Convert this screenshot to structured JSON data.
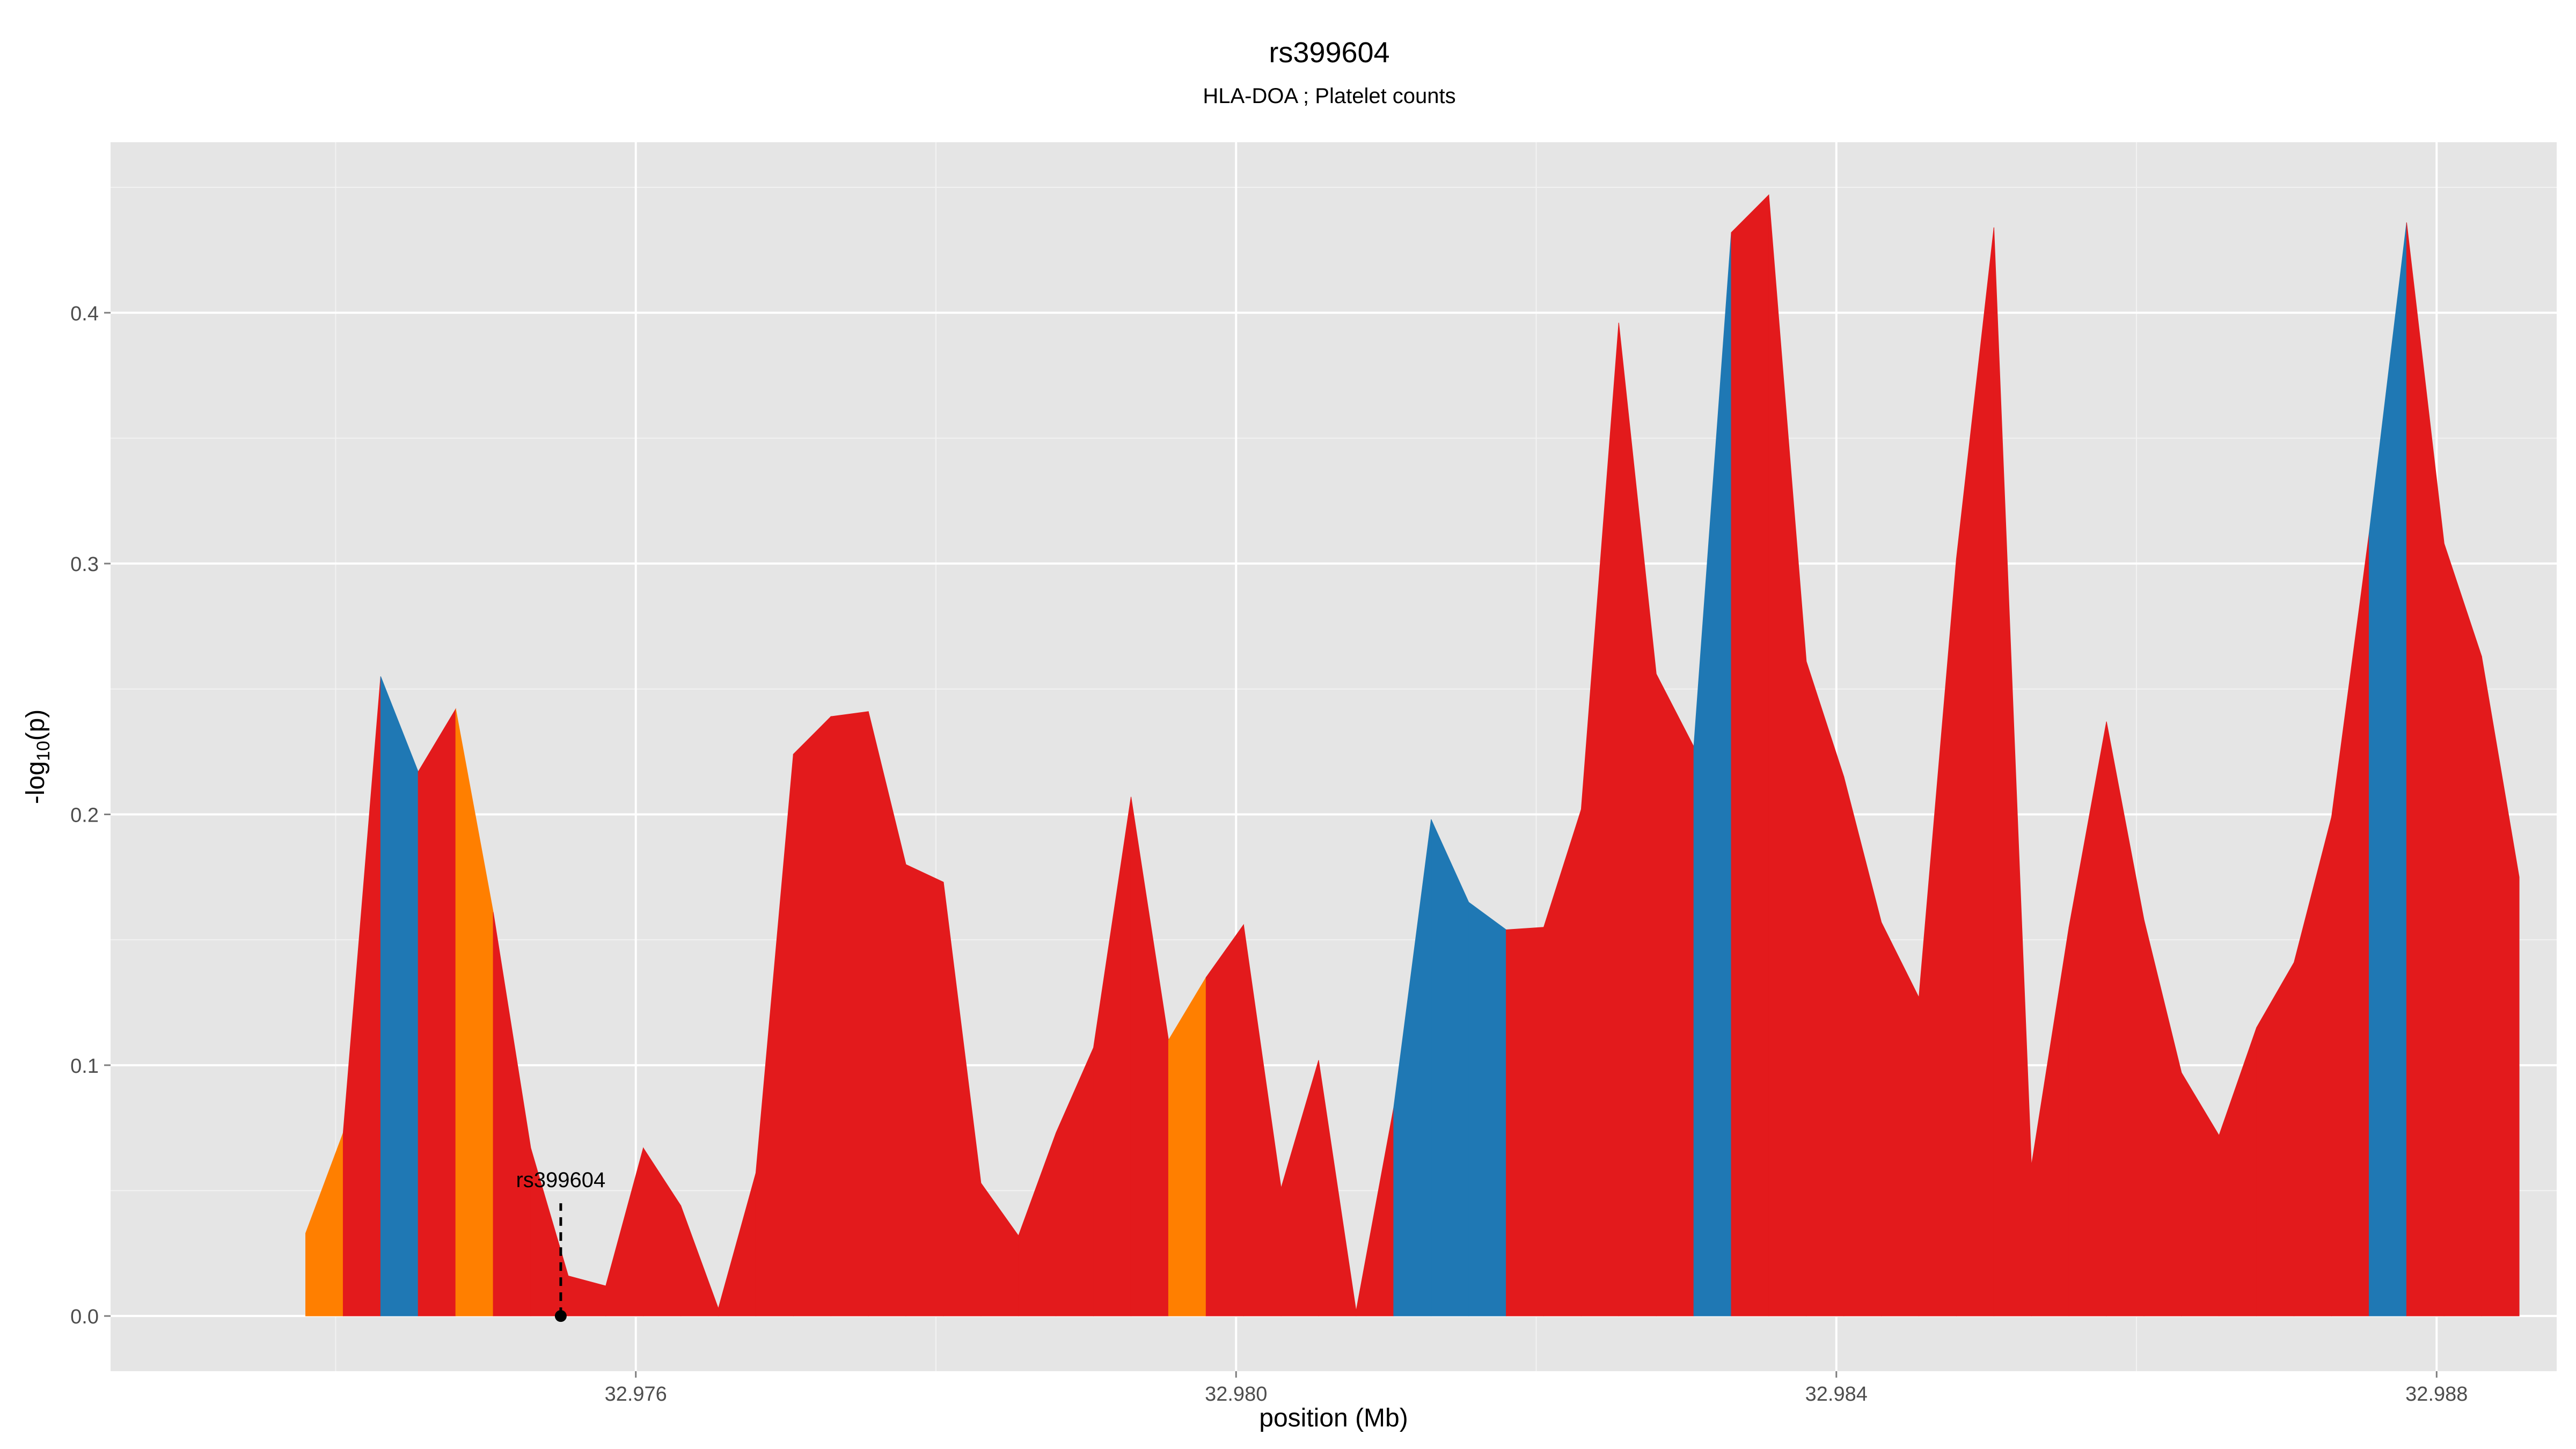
{
  "chart_data": {
    "type": "area",
    "title": "rs399604",
    "subtitle": "HLA-DOA ; Platelet counts",
    "xlabel": "position (Mb)",
    "ylabel": "-log10(p)",
    "xlim": [
      32.9725,
      32.9888
    ],
    "ylim": [
      -0.022,
      0.468
    ],
    "x_ticks": [
      {
        "value": 32.976,
        "label": "32.976"
      },
      {
        "value": 32.98,
        "label": "32.980"
      },
      {
        "value": 32.984,
        "label": "32.984"
      },
      {
        "value": 32.988,
        "label": "32.988"
      }
    ],
    "y_ticks": [
      {
        "value": 0.0,
        "label": "0.0"
      },
      {
        "value": 0.1,
        "label": "0.1"
      },
      {
        "value": 0.2,
        "label": "0.2"
      },
      {
        "value": 0.3,
        "label": "0.3"
      },
      {
        "value": 0.4,
        "label": "0.4"
      }
    ],
    "grid": true,
    "legend": "none",
    "colors": {
      "red": "#e31a1c",
      "blue": "#1f78b4",
      "orange": "#ff7f00",
      "panel": "#e5e5e5",
      "grid": "#ffffff"
    },
    "points": [
      {
        "x": 32.9738,
        "y": 0.033,
        "c": "orange"
      },
      {
        "x": 32.97405,
        "y": 0.073,
        "c": "red"
      },
      {
        "x": 32.9743,
        "y": 0.255,
        "c": "blue"
      },
      {
        "x": 32.97455,
        "y": 0.217,
        "c": "red"
      },
      {
        "x": 32.9748,
        "y": 0.242,
        "c": "orange"
      },
      {
        "x": 32.97505,
        "y": 0.161,
        "c": "red"
      },
      {
        "x": 32.9753,
        "y": 0.067,
        "c": "red"
      },
      {
        "x": 32.97555,
        "y": 0.016,
        "c": "red"
      },
      {
        "x": 32.9758,
        "y": 0.012,
        "c": "red"
      },
      {
        "x": 32.97605,
        "y": 0.067,
        "c": "red"
      },
      {
        "x": 32.9763,
        "y": 0.044,
        "c": "red"
      },
      {
        "x": 32.97655,
        "y": 0.003,
        "c": "red"
      },
      {
        "x": 32.9768,
        "y": 0.057,
        "c": "red"
      },
      {
        "x": 32.97705,
        "y": 0.224,
        "c": "red"
      },
      {
        "x": 32.9773,
        "y": 0.239,
        "c": "red"
      },
      {
        "x": 32.97755,
        "y": 0.241,
        "c": "red"
      },
      {
        "x": 32.9778,
        "y": 0.18,
        "c": "red"
      },
      {
        "x": 32.97805,
        "y": 0.173,
        "c": "red"
      },
      {
        "x": 32.9783,
        "y": 0.053,
        "c": "red"
      },
      {
        "x": 32.97855,
        "y": 0.032,
        "c": "red"
      },
      {
        "x": 32.9788,
        "y": 0.073,
        "c": "red"
      },
      {
        "x": 32.97905,
        "y": 0.107,
        "c": "red"
      },
      {
        "x": 32.9793,
        "y": 0.207,
        "c": "red"
      },
      {
        "x": 32.97955,
        "y": 0.11,
        "c": "orange"
      },
      {
        "x": 32.9798,
        "y": 0.135,
        "c": "red"
      },
      {
        "x": 32.98005,
        "y": 0.156,
        "c": "red"
      },
      {
        "x": 32.9803,
        "y": 0.051,
        "c": "red"
      },
      {
        "x": 32.98055,
        "y": 0.102,
        "c": "red"
      },
      {
        "x": 32.9808,
        "y": 0.002,
        "c": "red"
      },
      {
        "x": 32.98105,
        "y": 0.083,
        "c": "blue"
      },
      {
        "x": 32.9813,
        "y": 0.198,
        "c": "blue"
      },
      {
        "x": 32.98155,
        "y": 0.165,
        "c": "blue"
      },
      {
        "x": 32.9818,
        "y": 0.154,
        "c": "red"
      },
      {
        "x": 32.98205,
        "y": 0.155,
        "c": "red"
      },
      {
        "x": 32.9823,
        "y": 0.202,
        "c": "red"
      },
      {
        "x": 32.98255,
        "y": 0.396,
        "c": "red"
      },
      {
        "x": 32.9828,
        "y": 0.256,
        "c": "red"
      },
      {
        "x": 32.98305,
        "y": 0.227,
        "c": "blue"
      },
      {
        "x": 32.9833,
        "y": 0.432,
        "c": "red"
      },
      {
        "x": 32.98355,
        "y": 0.447,
        "c": "red"
      },
      {
        "x": 32.9838,
        "y": 0.261,
        "c": "red"
      },
      {
        "x": 32.98405,
        "y": 0.215,
        "c": "red"
      },
      {
        "x": 32.9843,
        "y": 0.157,
        "c": "red"
      },
      {
        "x": 32.98455,
        "y": 0.127,
        "c": "red"
      },
      {
        "x": 32.9848,
        "y": 0.302,
        "c": "red"
      },
      {
        "x": 32.98505,
        "y": 0.434,
        "c": "red"
      },
      {
        "x": 32.9853,
        "y": 0.06,
        "c": "red"
      },
      {
        "x": 32.98555,
        "y": 0.155,
        "c": "red"
      },
      {
        "x": 32.9858,
        "y": 0.237,
        "c": "red"
      },
      {
        "x": 32.98605,
        "y": 0.158,
        "c": "red"
      },
      {
        "x": 32.9863,
        "y": 0.097,
        "c": "red"
      },
      {
        "x": 32.98655,
        "y": 0.072,
        "c": "red"
      },
      {
        "x": 32.9868,
        "y": 0.115,
        "c": "red"
      },
      {
        "x": 32.98705,
        "y": 0.141,
        "c": "red"
      },
      {
        "x": 32.9873,
        "y": 0.199,
        "c": "red"
      },
      {
        "x": 32.98755,
        "y": 0.312,
        "c": "blue"
      },
      {
        "x": 32.9878,
        "y": 0.436,
        "c": "red"
      },
      {
        "x": 32.98805,
        "y": 0.308,
        "c": "red"
      },
      {
        "x": 32.9883,
        "y": 0.263,
        "c": "red"
      },
      {
        "x": 32.98855,
        "y": 0.175,
        "c": "red"
      }
    ],
    "annotation": {
      "label": "rs399604",
      "x": 32.9755,
      "y": 0.0
    }
  }
}
